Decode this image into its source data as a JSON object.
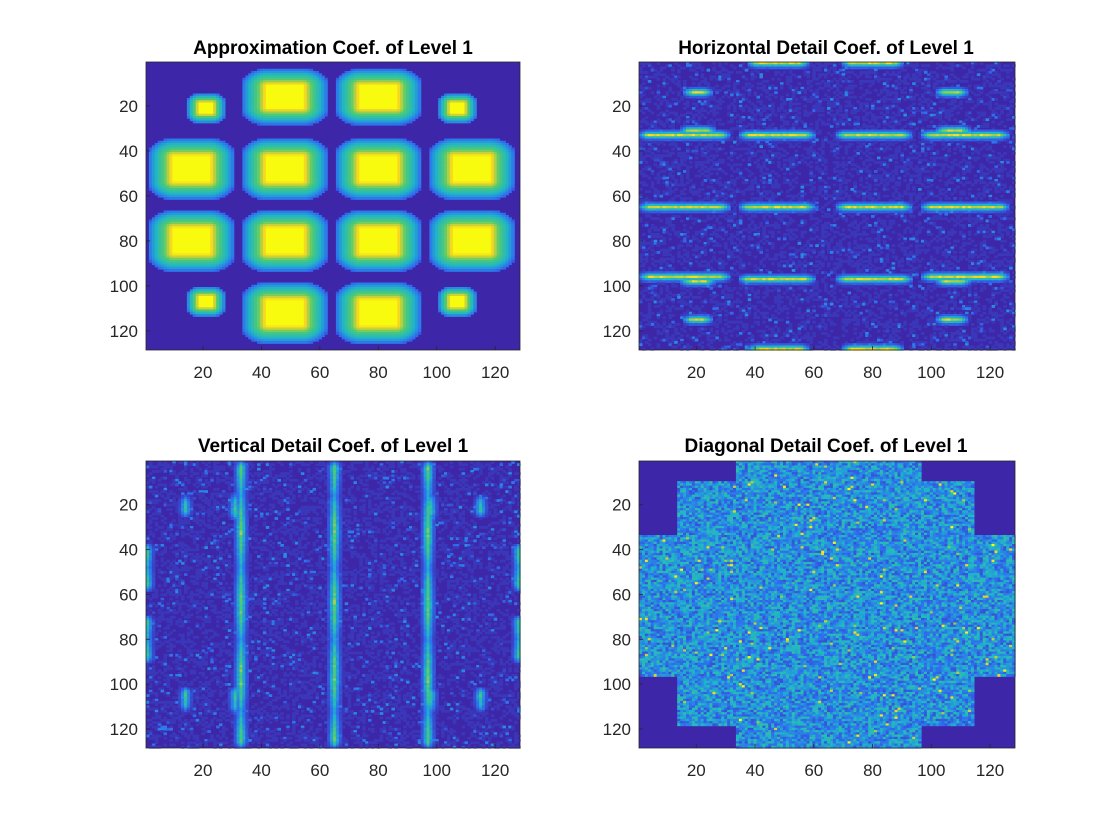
{
  "figure": {
    "background": "#ffffff"
  },
  "colors": {
    "low": "#3e26a8",
    "mid_low": "#2f6df0",
    "mid": "#1fb5c9",
    "mid_high": "#4fcb71",
    "high": "#f5d423",
    "peak": "#f9fb0e"
  },
  "chart_data": [
    {
      "type": "heatmap",
      "title": "Approximation Coef. of Level 1",
      "xlim": [
        0.5,
        128.5
      ],
      "ylim": [
        0.5,
        128.5
      ],
      "y_reversed": true,
      "xticks": [
        20,
        40,
        60,
        80,
        100,
        120
      ],
      "yticks": [
        20,
        40,
        60,
        80,
        100,
        120
      ],
      "colormap": "parula",
      "features": [
        {
          "kind": "blob",
          "cx": 48,
          "cy": 16,
          "rx": 11,
          "ry": 9
        },
        {
          "kind": "blob",
          "cx": 80,
          "cy": 16,
          "rx": 11,
          "ry": 9
        },
        {
          "kind": "blob",
          "cx": 21,
          "cy": 21,
          "rx": 4,
          "ry": 4
        },
        {
          "kind": "blob",
          "cx": 107,
          "cy": 21,
          "rx": 4,
          "ry": 4
        },
        {
          "kind": "blob",
          "cx": 16,
          "cy": 48,
          "rx": 11,
          "ry": 10
        },
        {
          "kind": "blob",
          "cx": 48,
          "cy": 48,
          "rx": 11,
          "ry": 10
        },
        {
          "kind": "blob",
          "cx": 80,
          "cy": 48,
          "rx": 11,
          "ry": 10
        },
        {
          "kind": "blob",
          "cx": 112,
          "cy": 48,
          "rx": 11,
          "ry": 10
        },
        {
          "kind": "blob",
          "cx": 16,
          "cy": 80,
          "rx": 11,
          "ry": 10
        },
        {
          "kind": "blob",
          "cx": 48,
          "cy": 80,
          "rx": 11,
          "ry": 10
        },
        {
          "kind": "blob",
          "cx": 80,
          "cy": 80,
          "rx": 11,
          "ry": 10
        },
        {
          "kind": "blob",
          "cx": 112,
          "cy": 80,
          "rx": 11,
          "ry": 10
        },
        {
          "kind": "blob",
          "cx": 21,
          "cy": 107,
          "rx": 4,
          "ry": 4
        },
        {
          "kind": "blob",
          "cx": 107,
          "cy": 107,
          "rx": 4,
          "ry": 4
        },
        {
          "kind": "blob",
          "cx": 48,
          "cy": 112,
          "rx": 11,
          "ry": 10
        },
        {
          "kind": "blob",
          "cx": 80,
          "cy": 112,
          "rx": 11,
          "ry": 10
        }
      ]
    },
    {
      "type": "heatmap",
      "title": "Horizontal Detail Coef. of Level 1",
      "xlim": [
        0.5,
        128.5
      ],
      "ylim": [
        0.5,
        128.5
      ],
      "y_reversed": true,
      "xticks": [
        20,
        40,
        60,
        80,
        100,
        120
      ],
      "yticks": [
        20,
        40,
        60,
        80,
        100,
        120
      ],
      "colormap": "parula",
      "features": [
        {
          "kind": "hline",
          "y": 33,
          "x0": 1,
          "x1": 31
        },
        {
          "kind": "hline",
          "y": 33,
          "x0": 35,
          "x1": 60
        },
        {
          "kind": "hline",
          "y": 33,
          "x0": 68,
          "x1": 93
        },
        {
          "kind": "hline",
          "y": 33,
          "x0": 97,
          "x1": 126
        },
        {
          "kind": "hline",
          "y": 31,
          "x0": 15,
          "x1": 26
        },
        {
          "kind": "hline",
          "y": 31,
          "x0": 102,
          "x1": 113
        },
        {
          "kind": "hline",
          "y": 65,
          "x0": 1,
          "x1": 31
        },
        {
          "kind": "hline",
          "y": 65,
          "x0": 35,
          "x1": 60
        },
        {
          "kind": "hline",
          "y": 65,
          "x0": 68,
          "x1": 93
        },
        {
          "kind": "hline",
          "y": 65,
          "x0": 97,
          "x1": 126
        },
        {
          "kind": "hline",
          "y": 96,
          "x0": 1,
          "x1": 31
        },
        {
          "kind": "hline",
          "y": 97,
          "x0": 35,
          "x1": 60
        },
        {
          "kind": "hline",
          "y": 97,
          "x0": 68,
          "x1": 93
        },
        {
          "kind": "hline",
          "y": 96,
          "x0": 97,
          "x1": 126
        },
        {
          "kind": "hline",
          "y": 98,
          "x0": 15,
          "x1": 26
        },
        {
          "kind": "hline",
          "y": 98,
          "x0": 102,
          "x1": 113
        },
        {
          "kind": "hline",
          "y": 14,
          "x0": 16,
          "x1": 25
        },
        {
          "kind": "hline",
          "y": 14,
          "x0": 102,
          "x1": 112
        },
        {
          "kind": "hline",
          "y": 115,
          "x0": 16,
          "x1": 25
        },
        {
          "kind": "hline",
          "y": 115,
          "x0": 102,
          "x1": 112
        },
        {
          "kind": "hline",
          "y": 1,
          "x0": 38,
          "x1": 58
        },
        {
          "kind": "hline",
          "y": 1,
          "x0": 70,
          "x1": 90
        },
        {
          "kind": "hline",
          "y": 128,
          "x0": 38,
          "x1": 58
        },
        {
          "kind": "hline",
          "y": 128,
          "x0": 70,
          "x1": 90
        }
      ]
    },
    {
      "type": "heatmap",
      "title": "Vertical Detail Coef. of Level 1",
      "xlim": [
        0.5,
        128.5
      ],
      "ylim": [
        0.5,
        128.5
      ],
      "y_reversed": true,
      "xticks": [
        20,
        40,
        60,
        80,
        100,
        120
      ],
      "yticks": [
        20,
        40,
        60,
        80,
        100,
        120
      ],
      "colormap": "parula",
      "features": [
        {
          "kind": "vline",
          "x": 33,
          "y0": 1,
          "y1": 128
        },
        {
          "kind": "vline",
          "x": 65,
          "y0": 1,
          "y1": 128
        },
        {
          "kind": "vline",
          "x": 97,
          "y0": 1,
          "y1": 128
        },
        {
          "kind": "vline",
          "x": 31,
          "y0": 15,
          "y1": 26
        },
        {
          "kind": "vline",
          "x": 98,
          "y0": 15,
          "y1": 26
        },
        {
          "kind": "vline",
          "x": 31,
          "y0": 102,
          "y1": 113
        },
        {
          "kind": "vline",
          "x": 98,
          "y0": 102,
          "y1": 113
        },
        {
          "kind": "vline",
          "x": 14,
          "y0": 16,
          "y1": 25
        },
        {
          "kind": "vline",
          "x": 115,
          "y0": 16,
          "y1": 25
        },
        {
          "kind": "vline",
          "x": 14,
          "y0": 102,
          "y1": 112
        },
        {
          "kind": "vline",
          "x": 115,
          "y0": 102,
          "y1": 112
        },
        {
          "kind": "vline",
          "x": 1,
          "y0": 38,
          "y1": 58
        },
        {
          "kind": "vline",
          "x": 1,
          "y0": 70,
          "y1": 90
        },
        {
          "kind": "vline",
          "x": 128,
          "y0": 38,
          "y1": 58
        },
        {
          "kind": "vline",
          "x": 128,
          "y0": 70,
          "y1": 90
        }
      ]
    },
    {
      "type": "heatmap",
      "title": "Diagonal Detail Coef. of Level 1",
      "xlim": [
        0.5,
        128.5
      ],
      "ylim": [
        0.5,
        128.5
      ],
      "y_reversed": true,
      "xticks": [
        20,
        40,
        60,
        80,
        100,
        120
      ],
      "yticks": [
        20,
        40,
        60,
        80,
        100,
        120
      ],
      "colormap": "parula",
      "features": [
        {
          "kind": "noise_region",
          "description": "speckle over cross-shaped region excluding corners"
        }
      ]
    }
  ]
}
